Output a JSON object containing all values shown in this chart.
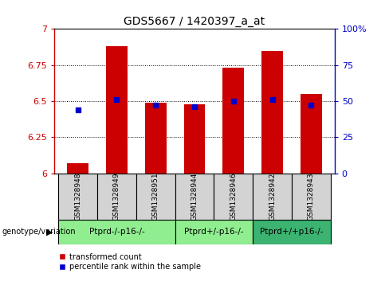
{
  "title": "GDS5667 / 1420397_a_at",
  "samples": [
    "GSM1328948",
    "GSM1328949",
    "GSM1328951",
    "GSM1328944",
    "GSM1328946",
    "GSM1328942",
    "GSM1328943"
  ],
  "red_values": [
    6.07,
    6.88,
    6.49,
    6.48,
    6.73,
    6.85,
    6.55
  ],
  "blue_values": [
    6.44,
    6.51,
    6.47,
    6.46,
    6.5,
    6.51,
    6.47
  ],
  "ylim": [
    6.0,
    7.0
  ],
  "yticks": [
    6.0,
    6.25,
    6.5,
    6.75,
    7.0
  ],
  "ytick_labels": [
    "6",
    "6.25",
    "6.5",
    "6.75",
    "7"
  ],
  "right_yticks": [
    0,
    25,
    50,
    75,
    100
  ],
  "right_ytick_labels": [
    "0",
    "25",
    "50",
    "75",
    "100%"
  ],
  "groups": [
    {
      "label": "Ptprd-/-p16-/-",
      "indices": [
        0,
        1,
        2
      ],
      "color": "#90EE90"
    },
    {
      "label": "Ptprd+/-p16-/-",
      "indices": [
        3,
        4
      ],
      "color": "#90EE90"
    },
    {
      "label": "Ptprd+/+p16-/-",
      "indices": [
        5,
        6
      ],
      "color": "#3CB371"
    }
  ],
  "group_label": "genotype/variation",
  "bar_color": "#CC0000",
  "dot_color": "#0000CC",
  "legend_red": "transformed count",
  "legend_blue": "percentile rank within the sample",
  "bar_width": 0.55,
  "grid_color": "black",
  "bg_color": "#D3D3D3",
  "plot_bg": "white",
  "title_fontsize": 10,
  "tick_fontsize": 8,
  "label_fontsize": 6.5,
  "group_fontsize": 7.5,
  "legend_fontsize": 7
}
